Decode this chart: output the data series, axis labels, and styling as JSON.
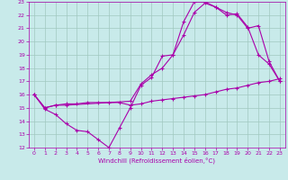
{
  "xlabel": "Windchill (Refroidissement éolien,°C)",
  "xlim": [
    -0.5,
    23.5
  ],
  "ylim": [
    12,
    23
  ],
  "xticks": [
    0,
    1,
    2,
    3,
    4,
    5,
    6,
    7,
    8,
    9,
    10,
    11,
    12,
    13,
    14,
    15,
    16,
    17,
    18,
    19,
    20,
    21,
    22,
    23
  ],
  "yticks": [
    12,
    13,
    14,
    15,
    16,
    17,
    18,
    19,
    20,
    21,
    22,
    23
  ],
  "bg_color": "#c8eaea",
  "grid_color": "#a0c8c0",
  "line_color": "#aa00aa",
  "lines": [
    {
      "x": [
        0,
        1,
        2,
        3,
        4,
        5,
        6,
        7,
        8,
        9,
        10,
        11,
        12,
        13,
        14,
        15,
        16,
        17,
        18,
        19,
        20,
        21,
        22,
        23
      ],
      "y": [
        16.0,
        14.9,
        14.5,
        13.8,
        13.3,
        13.2,
        12.6,
        12.0,
        13.5,
        15.0,
        16.7,
        17.3,
        18.9,
        19.0,
        21.5,
        23.0,
        23.0,
        22.6,
        22.0,
        22.1,
        21.1,
        19.0,
        18.3,
        17.0
      ]
    },
    {
      "x": [
        0,
        1,
        2,
        3,
        4,
        5,
        6,
        7,
        8,
        9,
        10,
        11,
        12,
        13,
        14,
        15,
        16,
        17,
        18,
        19,
        20,
        21,
        22,
        23
      ],
      "y": [
        16.0,
        15.0,
        15.2,
        15.3,
        15.3,
        15.4,
        15.4,
        15.4,
        15.4,
        15.2,
        15.3,
        15.5,
        15.6,
        15.7,
        15.8,
        15.9,
        16.0,
        16.2,
        16.4,
        16.5,
        16.7,
        16.9,
        17.0,
        17.2
      ]
    },
    {
      "x": [
        0,
        1,
        2,
        3,
        9,
        10,
        11,
        12,
        13,
        14,
        15,
        16,
        17,
        18,
        19,
        20,
        21,
        22,
        23
      ],
      "y": [
        16.0,
        15.0,
        15.2,
        15.2,
        15.5,
        16.8,
        17.5,
        18.0,
        19.0,
        20.5,
        22.2,
        22.9,
        22.6,
        22.2,
        22.0,
        21.0,
        21.2,
        18.5,
        17.0
      ]
    }
  ]
}
